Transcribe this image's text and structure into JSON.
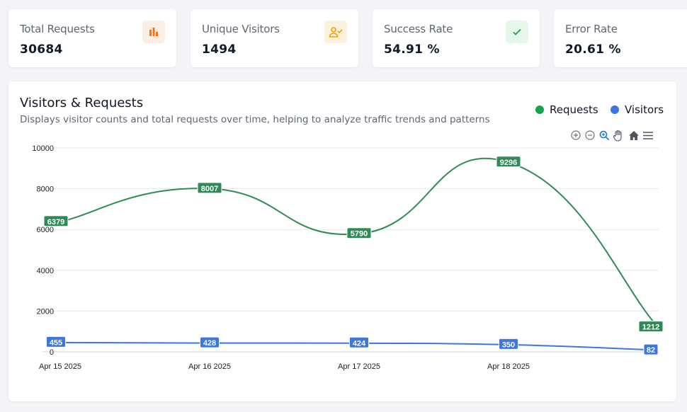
{
  "stats": [
    {
      "label": "Total Requests",
      "value": "30684",
      "icon": "bar-chart-icon",
      "icon_color": "#f97316",
      "icon_bg": "#fdeee3"
    },
    {
      "label": "Unique Visitors",
      "value": "1494",
      "icon": "user-check-icon",
      "icon_color": "#f59e0b",
      "icon_bg": "#fdf1dd"
    },
    {
      "label": "Success Rate",
      "value": "54.91 %",
      "icon": "check-icon",
      "icon_color": "#16a34a",
      "icon_bg": "#e5f7ea"
    },
    {
      "label": "Error Rate",
      "value": "20.61 %",
      "icon": "",
      "icon_color": "",
      "icon_bg": ""
    }
  ],
  "chart_panel": {
    "title": "Visitors & Requests",
    "subtitle": "Displays visitor counts and total requests over time, helping to analyze traffic trends and patterns",
    "toolbar": [
      "zoom-in-icon",
      "zoom-out-icon",
      "selection-zoom-icon",
      "pan-hand-icon",
      "reset-home-icon",
      "menu-icon"
    ]
  },
  "chart_data": {
    "type": "line",
    "title": "",
    "xlabel": "",
    "ylabel": "",
    "categories": [
      "Apr 15 2025",
      "Apr 16 2025",
      "Apr 17 2025",
      "Apr 18 2025",
      ""
    ],
    "ylim": [
      0,
      10000
    ],
    "yticks": [
      0,
      2000,
      4000,
      6000,
      8000,
      10000
    ],
    "grid": true,
    "legend": "top-right",
    "series": [
      {
        "name": "Requests",
        "values": [
          6379,
          8007,
          5790,
          9296,
          1212
        ],
        "color": "#2e8b57"
      },
      {
        "name": "Visitors",
        "values": [
          455,
          428,
          424,
          350,
          82
        ],
        "color": "#3b76e1"
      }
    ]
  }
}
